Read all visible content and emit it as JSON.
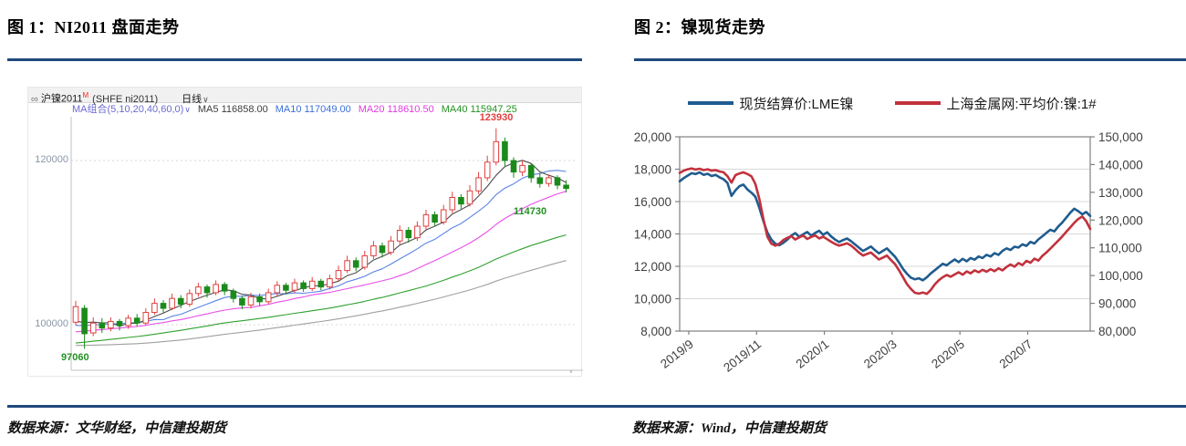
{
  "left_panel": {
    "title": "图 1：NI2011 盘面走势",
    "source": "数据来源：文华财经，中信建投期货",
    "toolbar": {
      "link_icon": "∞",
      "symbol": "沪镍2011",
      "symbol_sup": "M",
      "symbol_detail": "(SHFE ni2011)",
      "period": "日线",
      "caret": "∨"
    },
    "ma_row": {
      "combo": "MA组合(5,10,20,40,60,0)",
      "caret": "∨",
      "ma5": "MA5 116858.00",
      "ma10": "MA10 117049.00",
      "ma20": "MA20 118610.50",
      "ma40": "MA40 115947.25"
    },
    "y_axis_labels": [
      "120000",
      "100000"
    ],
    "annotations": {
      "high": "123930",
      "ma40": "114730",
      "low": "97060"
    }
  },
  "right_panel": {
    "title": "图 2：镍现货走势",
    "source": "数据来源：Wind，中信建投期货",
    "legend": [
      {
        "label": "现货结算价:LME镍",
        "color": "#1F5C8F"
      },
      {
        "label": "上海金属网:平均价:镍:1#",
        "color": "#C2313C"
      }
    ]
  },
  "colors": {
    "rule_blue": "#1F497D",
    "candle_up": "#E04040",
    "candle_down": "#1B8A1B",
    "grid": "#D9D9D9",
    "axis": "#808080"
  },
  "chart_data": [
    {
      "type": "candlestick",
      "title": "NI2011 盘面走势",
      "symbol": "SHFE ni2011",
      "period": "日线",
      "y_gridlines": [
        120000,
        100000
      ],
      "ylim": [
        94450,
        125330
      ],
      "ma_current_values": {
        "MA5": 116858.0,
        "MA10": 117049.0,
        "MA20": 118610.5,
        "MA40": 115947.25
      },
      "annotations": {
        "high": 123930,
        "low": 97060,
        "ma40_label": 114730
      },
      "candles_ohlc_as_open_close_low_high": true,
      "candles": [
        [
          100300,
          102200,
          99900,
          102900
        ],
        [
          102000,
          98900,
          97060,
          102400
        ],
        [
          99000,
          100200,
          98600,
          100900
        ],
        [
          100200,
          99600,
          99000,
          100800
        ],
        [
          99600,
          100400,
          99200,
          100900
        ],
        [
          100400,
          99900,
          99300,
          100700
        ],
        [
          99900,
          100800,
          99500,
          101200
        ],
        [
          100800,
          100200,
          99800,
          101300
        ],
        [
          100200,
          101500,
          100000,
          102000
        ],
        [
          101500,
          102600,
          101200,
          103200
        ],
        [
          102600,
          102000,
          101500,
          103000
        ],
        [
          102000,
          103200,
          101800,
          103800
        ],
        [
          103200,
          102500,
          102000,
          103600
        ],
        [
          102500,
          103800,
          102200,
          104300
        ],
        [
          103800,
          104600,
          103400,
          105100
        ],
        [
          104600,
          103900,
          103300,
          104900
        ],
        [
          103900,
          104900,
          103600,
          105400
        ],
        [
          104900,
          104100,
          103600,
          105200
        ],
        [
          104100,
          103200,
          102700,
          104400
        ],
        [
          103200,
          102400,
          101900,
          103500
        ],
        [
          102400,
          103400,
          102000,
          103900
        ],
        [
          103400,
          102800,
          102300,
          103800
        ],
        [
          102800,
          103900,
          102500,
          104400
        ],
        [
          103900,
          104800,
          103500,
          105300
        ],
        [
          104800,
          104200,
          103700,
          105100
        ],
        [
          104200,
          105100,
          103900,
          105600
        ],
        [
          105100,
          104400,
          104000,
          105400
        ],
        [
          104400,
          105300,
          104100,
          105800
        ],
        [
          105300,
          104600,
          104200,
          105600
        ],
        [
          104600,
          105600,
          104300,
          106100
        ],
        [
          105600,
          106600,
          105200,
          107200
        ],
        [
          106600,
          107800,
          106300,
          108400
        ],
        [
          107800,
          107000,
          106500,
          108200
        ],
        [
          107000,
          108400,
          106700,
          109000
        ],
        [
          108400,
          109600,
          108000,
          110200
        ],
        [
          109600,
          108800,
          108200,
          110000
        ],
        [
          108800,
          110200,
          108500,
          110800
        ],
        [
          110200,
          111500,
          109800,
          112100
        ],
        [
          111500,
          110600,
          110000,
          111900
        ],
        [
          110600,
          112000,
          110200,
          112600
        ],
        [
          112000,
          113400,
          111600,
          114000
        ],
        [
          113400,
          112500,
          112000,
          113800
        ],
        [
          112500,
          114000,
          112200,
          114600
        ],
        [
          114000,
          115500,
          113600,
          116200
        ],
        [
          115500,
          114700,
          114100,
          115900
        ],
        [
          114700,
          116300,
          114400,
          117000
        ],
        [
          116300,
          117900,
          115900,
          118600
        ],
        [
          117900,
          119800,
          117500,
          120600
        ],
        [
          119800,
          122300,
          119400,
          123930
        ],
        [
          122300,
          120000,
          119300,
          122800
        ],
        [
          120000,
          118600,
          117900,
          120400
        ],
        [
          118600,
          119400,
          118100,
          120000
        ],
        [
          119400,
          117900,
          117300,
          119700
        ],
        [
          117900,
          117200,
          116700,
          118500
        ],
        [
          117200,
          117900,
          116800,
          118300
        ],
        [
          117900,
          117000,
          116500,
          118200
        ],
        [
          117000,
          116600,
          116100,
          117600
        ]
      ],
      "ma_windows": [
        5,
        10,
        20,
        40,
        60
      ]
    },
    {
      "type": "line",
      "title": "镍现货走势",
      "left_ylabel_ticks": [
        20000,
        18000,
        16000,
        14000,
        12000,
        10000,
        8000
      ],
      "right_ylabel_ticks": [
        150000,
        140000,
        130000,
        120000,
        110000,
        100000,
        90000,
        80000
      ],
      "left_ylim": [
        8000,
        20000
      ],
      "right_ylim": [
        80000,
        150000
      ],
      "x_tick_labels": [
        "2019/9",
        "2019/11",
        "2020/1",
        "2020/3",
        "2020/5",
        "2020/7"
      ],
      "grid": true,
      "legend_position": "top",
      "series": [
        {
          "name": "现货结算价:LME镍",
          "axis": "left",
          "color": "#1F5C8F",
          "values": [
            17250,
            17450,
            17600,
            17750,
            17700,
            17800,
            17650,
            17720,
            17580,
            17650,
            17500,
            17380,
            17150,
            16350,
            16700,
            16950,
            17050,
            16750,
            16550,
            16300,
            15600,
            14800,
            14100,
            13650,
            13400,
            13300,
            13450,
            13650,
            13900,
            14050,
            13820,
            13980,
            14120,
            13900,
            14060,
            14200,
            13950,
            14100,
            13850,
            13650,
            13500,
            13620,
            13720,
            13550,
            13350,
            13150,
            12950,
            13080,
            13220,
            13000,
            12800,
            12960,
            13110,
            12850,
            12600,
            12250,
            11850,
            11550,
            11300,
            11200,
            11260,
            11140,
            11320,
            11560,
            11760,
            11960,
            12160,
            12060,
            12260,
            12420,
            12260,
            12460,
            12310,
            12510,
            12410,
            12610,
            12510,
            12710,
            12610,
            12810,
            12710,
            12960,
            13110,
            13010,
            13210,
            13160,
            13360,
            13260,
            13510,
            13410,
            13660,
            13860,
            14060,
            14260,
            14160,
            14460,
            14710,
            15010,
            15310,
            15560,
            15410,
            15210,
            15360,
            15110
          ]
        },
        {
          "name": "上海金属网:平均价:镍:1#",
          "axis": "right",
          "color": "#C2313C",
          "values": [
            137000,
            137800,
            138300,
            138600,
            138200,
            138500,
            138000,
            138300,
            137800,
            138000,
            137500,
            137200,
            135800,
            133500,
            136200,
            136800,
            137200,
            136600,
            135800,
            133000,
            127500,
            120500,
            114000,
            111500,
            110800,
            111500,
            112800,
            113600,
            114200,
            113000,
            113800,
            114400,
            113200,
            113900,
            114500,
            113400,
            114000,
            113100,
            112200,
            111400,
            110800,
            111200,
            111600,
            110800,
            109600,
            108300,
            107200,
            107800,
            108300,
            107000,
            105800,
            106500,
            107200,
            105600,
            104200,
            102000,
            99500,
            97000,
            95200,
            93800,
            93500,
            93900,
            93400,
            94800,
            96800,
            98300,
            99400,
            100200,
            99600,
            100400,
            101200,
            100300,
            101500,
            100800,
            101900,
            101200,
            102100,
            101400,
            102300,
            101600,
            102600,
            101900,
            103100,
            104000,
            103200,
            104500,
            103800,
            105300,
            104600,
            106100,
            105400,
            107100,
            108300,
            109700,
            111200,
            112600,
            114100,
            115800,
            117400,
            119000,
            120400,
            121300,
            119600,
            116800
          ]
        }
      ]
    }
  ]
}
